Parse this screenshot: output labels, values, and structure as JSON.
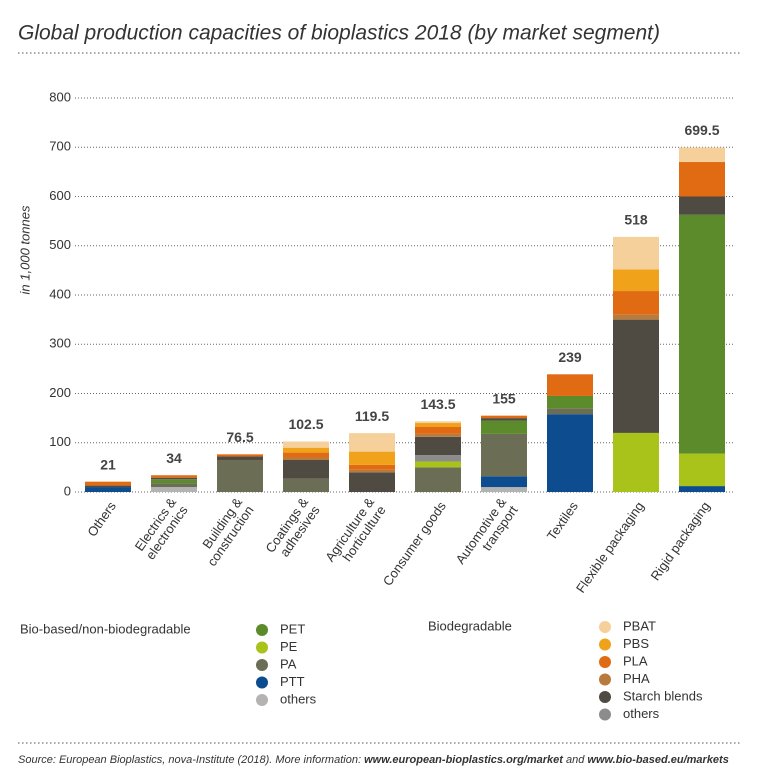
{
  "chart_data": {
    "type": "stacked_bar",
    "title": "Global production capacities of bioplastics 2018 (by market segment)",
    "y_label": "in 1,000 tonnes",
    "categories": [
      "Others",
      "Electrics &\nelectronics",
      "Building &\nconstruction",
      "Coatings &\nadhesives",
      "Agriculture &\nhorticulture",
      "Consumer goods",
      "Automotive &\ntransport",
      "Textiles",
      "Flexible packaging",
      "Rigid packaging"
    ],
    "totals": [
      21,
      34,
      76.5,
      102.5,
      119.5,
      143.5,
      155,
      239,
      518,
      699.5
    ],
    "ylim": [
      0,
      800
    ],
    "yticks": [
      0,
      100,
      200,
      300,
      400,
      500,
      600,
      700,
      800
    ],
    "grid": true,
    "groups": [
      {
        "name": "Bio-based/non-biodegradable",
        "series": [
          {
            "name": "others",
            "color": "#b3b3b3",
            "values": [
              0,
              10,
              0,
              0,
              0,
              0,
              10,
              0,
              0,
              0
            ]
          },
          {
            "name": "PTT",
            "color": "#0d4c8f",
            "values": [
              10,
              0,
              0,
              0,
              0,
              0,
              22,
              158,
              0,
              12
            ]
          },
          {
            "name": "PA",
            "color": "#6b6d55",
            "values": [
              0,
              8,
              65,
              27,
              0,
              50,
              86,
              12,
              0,
              0
            ]
          },
          {
            "name": "PE",
            "color": "#a9c31b",
            "values": [
              0,
              0,
              0,
              0,
              0,
              12,
              0,
              0,
              120,
              66
            ]
          },
          {
            "name": "PET",
            "color": "#5b8b2b",
            "values": [
              0,
              8,
              0,
              0,
              0,
              0,
              27,
              25,
              0,
              485
            ]
          }
        ]
      },
      {
        "name": "Biodegradable",
        "series": [
          {
            "name": "others",
            "color": "#8c8c8c",
            "values": [
              0,
              0,
              0,
              0,
              0,
              13,
              0,
              0,
              0,
              0
            ]
          },
          {
            "name": "Starch blends",
            "color": "#4f4a42",
            "values": [
              3,
              3,
              7,
              38,
              40,
              37,
              5,
              0,
              230,
              37
            ]
          },
          {
            "name": "PHA",
            "color": "#b67b3d",
            "values": [
              0,
              0,
              0,
              5,
              5,
              6,
              0,
              0,
              10,
              0
            ]
          },
          {
            "name": "PLA",
            "color": "#e06b13",
            "values": [
              8,
              5,
              4.5,
              10,
              10,
              14,
              5,
              44,
              48,
              70
            ]
          },
          {
            "name": "PBS",
            "color": "#f0a21b",
            "values": [
              0,
              0,
              0,
              10,
              27,
              8,
              0,
              0,
              44,
              0
            ]
          },
          {
            "name": "PBAT",
            "color": "#f6d09a",
            "values": [
              0,
              0,
              0,
              12.5,
              37.5,
              3.5,
              0,
              0,
              66,
              29.5
            ]
          }
        ]
      }
    ],
    "source_prefix": "Source: European Bioplastics, nova-Institute (2018). More information:",
    "source_link_1": "www.european-bioplastics.org/market",
    "source_and": "and",
    "source_link_2": "www.bio-based.eu/markets"
  }
}
